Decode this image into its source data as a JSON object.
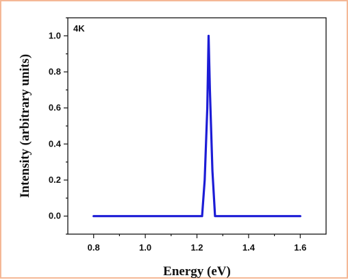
{
  "chart_data": {
    "type": "line",
    "annotation": "4K",
    "xlabel": "Energy (eV)",
    "ylabel": "Intensity (arbitrary units)",
    "xlim": [
      0.7,
      1.7
    ],
    "ylim": [
      -0.1,
      1.1
    ],
    "x_ticks": [
      0.8,
      1.0,
      1.2,
      1.4,
      1.6
    ],
    "x_tick_labels": [
      "0.8",
      "1.0",
      "1.2",
      "1.4",
      "1.6"
    ],
    "y_ticks": [
      0.0,
      0.2,
      0.4,
      0.6,
      0.8,
      1.0
    ],
    "y_tick_labels": [
      "0.0",
      "0.2",
      "0.4",
      "0.6",
      "0.8",
      "1.0"
    ],
    "grid": false,
    "series": [
      {
        "color": "#1c1cd6",
        "x": [
          0.8,
          1.2,
          1.22,
          1.23,
          1.24,
          1.245,
          1.25,
          1.26,
          1.27,
          1.28,
          1.6
        ],
        "y": [
          0.0,
          0.0,
          0.0,
          0.2,
          0.6,
          1.0,
          0.7,
          0.25,
          0.0,
          0.0,
          0.0
        ]
      }
    ]
  }
}
